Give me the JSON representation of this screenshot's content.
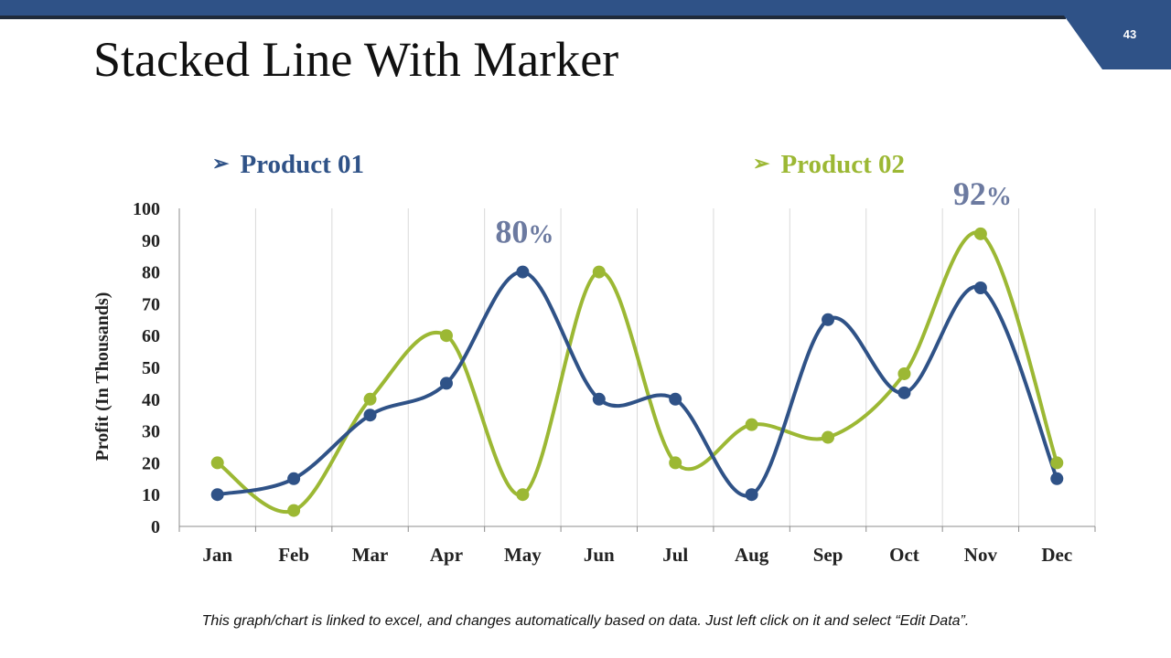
{
  "slide": {
    "title": "Stacked Line With Marker",
    "page_number": "43",
    "footnote": "This graph/chart is linked to excel, and changes automatically based on data. Just left click on it and select “Edit Data”."
  },
  "colors": {
    "header": "#2f5287",
    "series_1": "#2f5287",
    "series_2": "#9cb834",
    "callout": "#6c7aa0"
  },
  "chart_data": {
    "type": "line",
    "title": "",
    "ylabel": "Profit (In Thousands)",
    "xlabel": "",
    "ylim": [
      0,
      100
    ],
    "yticks": [
      "0",
      "10",
      "20",
      "30",
      "40",
      "50",
      "60",
      "70",
      "80",
      "90",
      "100"
    ],
    "categories": [
      "Jan",
      "Feb",
      "Mar",
      "Apr",
      "May",
      "Jun",
      "Jul",
      "Aug",
      "Sep",
      "Oct",
      "Nov",
      "Dec"
    ],
    "grid": "vertical",
    "legend_position": "top",
    "series": [
      {
        "name": "Product 01",
        "values": [
          10,
          15,
          35,
          45,
          80,
          40,
          40,
          10,
          65,
          42,
          75,
          15
        ]
      },
      {
        "name": "Product 02",
        "values": [
          20,
          5,
          40,
          60,
          10,
          80,
          20,
          32,
          28,
          48,
          92,
          20
        ]
      }
    ],
    "annotations": [
      {
        "number": "80",
        "unit": "%",
        "series": 0,
        "category": "May"
      },
      {
        "number": "92",
        "unit": "%",
        "series": 1,
        "category": "Nov"
      }
    ]
  }
}
